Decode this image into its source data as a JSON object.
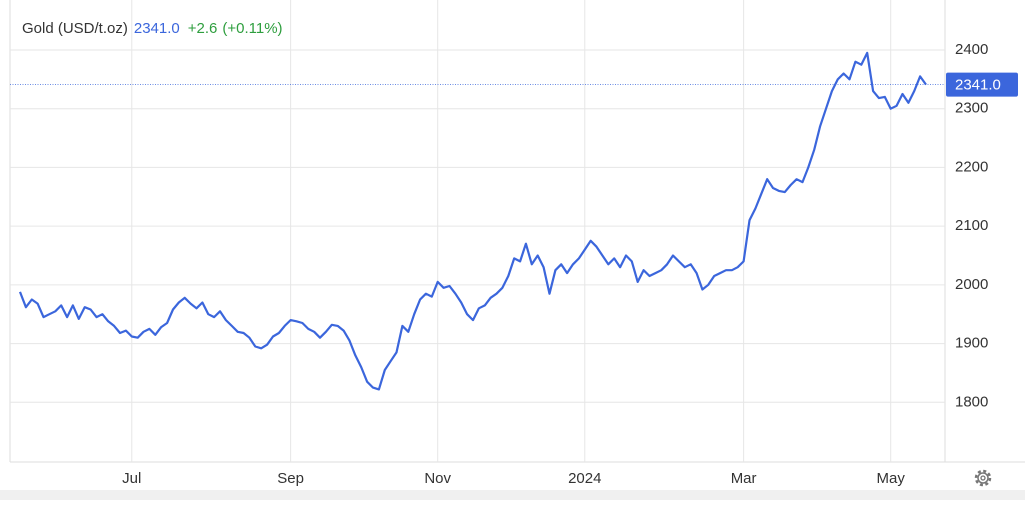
{
  "chart_data": {
    "type": "line",
    "title": "Gold (USD/t.oz)",
    "price": "2341.0",
    "change": "+2.6",
    "change_pct": "(+0.11%)",
    "color": "#3b66dc",
    "categories": [
      null,
      null,
      null,
      null,
      null,
      null,
      null,
      null,
      null,
      null,
      null,
      null,
      null,
      null,
      null,
      null,
      null,
      null,
      null,
      "Jul",
      null,
      null,
      null,
      null,
      null,
      null,
      null,
      null,
      null,
      null,
      null,
      null,
      null,
      null,
      null,
      null,
      null,
      null,
      null,
      null,
      null,
      null,
      null,
      null,
      null,
      null,
      "Sep",
      null,
      null,
      null,
      null,
      null,
      null,
      null,
      null,
      null,
      null,
      null,
      null,
      null,
      null,
      null,
      null,
      null,
      null,
      null,
      null,
      null,
      null,
      null,
      null,
      "Nov",
      null,
      null,
      null,
      null,
      null,
      null,
      null,
      null,
      null,
      null,
      null,
      null,
      null,
      null,
      null,
      null,
      null,
      null,
      null,
      null,
      null,
      null,
      null,
      null,
      "2024",
      null,
      null,
      null,
      null,
      null,
      null,
      null,
      null,
      null,
      null,
      null,
      null,
      null,
      null,
      null,
      null,
      null,
      null,
      null,
      null,
      null,
      null,
      null,
      null,
      null,
      null,
      "Mar",
      null,
      null,
      null,
      null,
      null,
      null,
      null,
      null,
      null,
      null,
      null,
      null,
      null,
      null,
      null,
      null,
      null,
      null,
      null,
      null,
      null,
      null,
      null,
      null,
      "May",
      null,
      null,
      null,
      null,
      null,
      null
    ],
    "values": [
      1988,
      1962,
      1975,
      1968,
      1945,
      1950,
      1955,
      1965,
      1945,
      1965,
      1942,
      1962,
      1958,
      1945,
      1950,
      1938,
      1930,
      1918,
      1922,
      1912,
      1910,
      1920,
      1925,
      1915,
      1928,
      1935,
      1958,
      1970,
      1978,
      1968,
      1960,
      1970,
      1950,
      1945,
      1955,
      1940,
      1930,
      1920,
      1918,
      1910,
      1895,
      1892,
      1898,
      1912,
      1918,
      1930,
      1940,
      1938,
      1935,
      1925,
      1920,
      1910,
      1920,
      1932,
      1930,
      1922,
      1905,
      1880,
      1860,
      1835,
      1825,
      1822,
      1855,
      1870,
      1885,
      1930,
      1920,
      1950,
      1975,
      1985,
      1980,
      2005,
      1995,
      1998,
      1985,
      1970,
      1950,
      1940,
      1960,
      1965,
      1978,
      1985,
      1995,
      2015,
      2045,
      2040,
      2070,
      2035,
      2050,
      2030,
      1985,
      2025,
      2035,
      2020,
      2035,
      2045,
      2060,
      2075,
      2065,
      2050,
      2035,
      2045,
      2030,
      2050,
      2040,
      2005,
      2025,
      2015,
      2020,
      2025,
      2035,
      2050,
      2040,
      2030,
      2035,
      2020,
      1992,
      2000,
      2015,
      2020,
      2025,
      2025,
      2030,
      2040,
      2110,
      2130,
      2155,
      2180,
      2165,
      2160,
      2158,
      2170,
      2180,
      2175,
      2200,
      2230,
      2270,
      2300,
      2330,
      2350,
      2360,
      2350,
      2380,
      2375,
      2395,
      2330,
      2318,
      2320,
      2300,
      2305,
      2325,
      2310,
      2330,
      2355,
      2341
    ],
    "ylim": [
      1700,
      2480
    ],
    "yticks": [
      1800,
      1900,
      2000,
      2100,
      2200,
      2300,
      2400
    ],
    "grid": true
  }
}
